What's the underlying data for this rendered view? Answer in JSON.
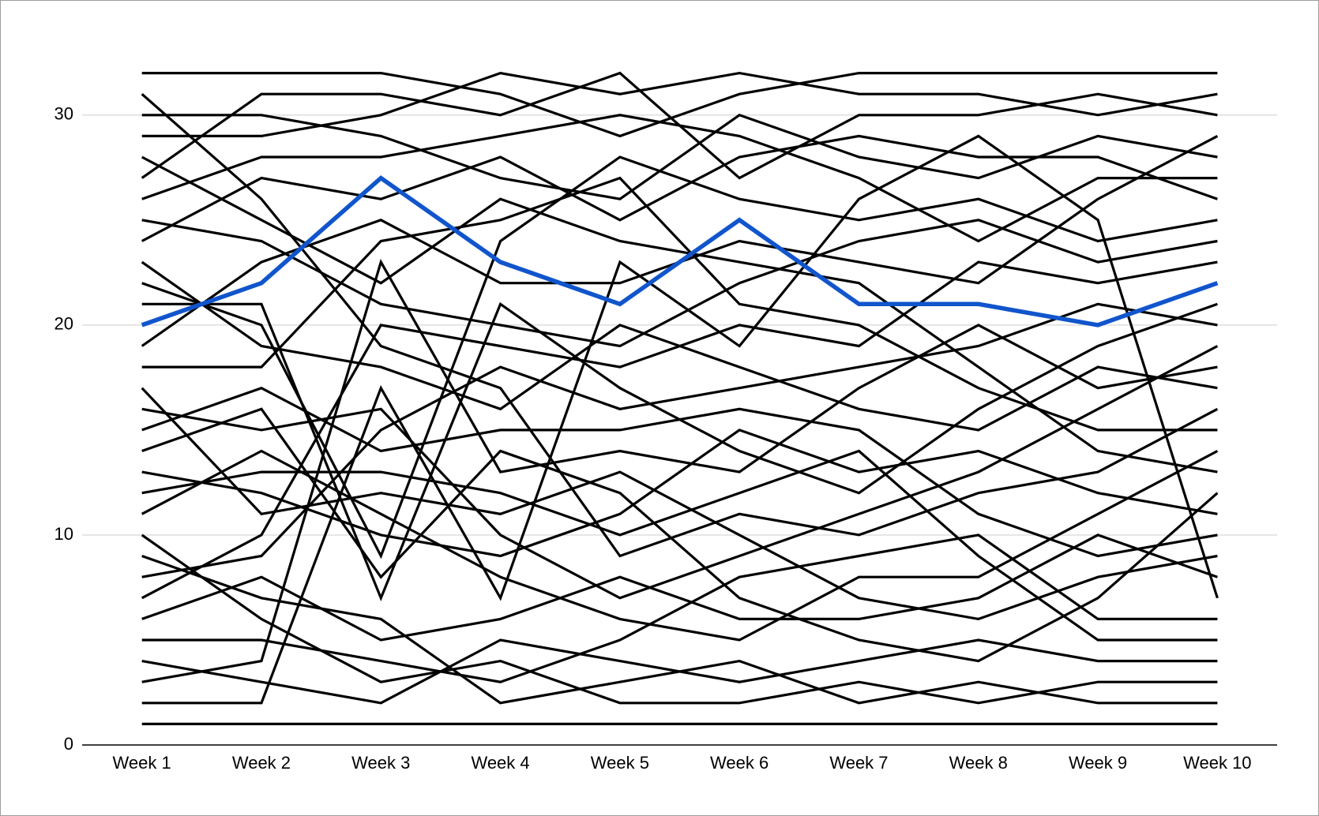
{
  "chart_data": {
    "type": "line",
    "categories": [
      "Week 1",
      "Week 2",
      "Week 3",
      "Week 4",
      "Week 5",
      "Week 6",
      "Week 7",
      "Week 8",
      "Week 9",
      "Week 10"
    ],
    "ylim": [
      0,
      33
    ],
    "yticks": [
      0,
      10,
      20,
      30
    ],
    "grid": true,
    "series": [
      {
        "color": "#000000",
        "values": [
          32,
          32,
          32,
          31,
          29,
          31,
          32,
          32,
          32,
          32
        ]
      },
      {
        "color": "#000000",
        "values": [
          31,
          26,
          19,
          17,
          9,
          11,
          10,
          12,
          13,
          16
        ]
      },
      {
        "color": "#000000",
        "values": [
          30,
          30,
          29,
          27,
          26,
          30,
          28,
          27,
          29,
          28
        ]
      },
      {
        "color": "#000000",
        "values": [
          29,
          29,
          30,
          32,
          31,
          32,
          31,
          31,
          30,
          31
        ]
      },
      {
        "color": "#000000",
        "values": [
          28,
          25,
          22,
          26,
          24,
          23,
          22,
          18,
          14,
          13
        ]
      },
      {
        "color": "#000000",
        "values": [
          27,
          31,
          31,
          30,
          32,
          27,
          30,
          30,
          31,
          30
        ]
      },
      {
        "color": "#000000",
        "values": [
          26,
          28,
          28,
          29,
          30,
          29,
          27,
          24,
          27,
          27
        ]
      },
      {
        "color": "#000000",
        "values": [
          25,
          24,
          21,
          20,
          19,
          22,
          24,
          25,
          23,
          24
        ]
      },
      {
        "color": "#000000",
        "values": [
          24,
          27,
          26,
          28,
          25,
          28,
          29,
          28,
          28,
          26
        ]
      },
      {
        "color": "#000000",
        "values": [
          23,
          19,
          18,
          16,
          20,
          18,
          16,
          15,
          18,
          17
        ]
      },
      {
        "color": "#000000",
        "values": [
          22,
          20,
          9,
          24,
          28,
          26,
          25,
          26,
          24,
          25
        ]
      },
      {
        "color": "#000000",
        "values": [
          21,
          21,
          7,
          21,
          17,
          14,
          12,
          16,
          19,
          21
        ]
      },
      {
        "color": "#000000",
        "values": [
          19,
          23,
          25,
          22,
          22,
          24,
          23,
          22,
          26,
          29
        ]
      },
      {
        "color": "#000000",
        "values": [
          18,
          18,
          24,
          25,
          27,
          21,
          20,
          17,
          15,
          15
        ]
      },
      {
        "color": "#000000",
        "values": [
          17,
          11,
          12,
          11,
          13,
          10,
          7,
          6,
          8,
          9
        ]
      },
      {
        "color": "#000000",
        "values": [
          16,
          15,
          16,
          10,
          7,
          9,
          11,
          13,
          16,
          19
        ]
      },
      {
        "color": "#000000",
        "values": [
          15,
          17,
          14,
          15,
          15,
          16,
          15,
          11,
          9,
          10
        ]
      },
      {
        "color": "#000000",
        "values": [
          14,
          16,
          8,
          14,
          12,
          7,
          5,
          4,
          7,
          12
        ]
      },
      {
        "color": "#000000",
        "values": [
          13,
          12,
          10,
          9,
          11,
          15,
          13,
          14,
          12,
          11
        ]
      },
      {
        "color": "#000000",
        "values": [
          12,
          13,
          13,
          12,
          10,
          12,
          14,
          9,
          5,
          5
        ]
      },
      {
        "color": "#000000",
        "values": [
          11,
          14,
          11,
          8,
          6,
          5,
          8,
          8,
          11,
          14
        ]
      },
      {
        "color": "#000000",
        "values": [
          10,
          6,
          3,
          4,
          2,
          2,
          3,
          2,
          3,
          3
        ]
      },
      {
        "color": "#000000",
        "values": [
          9,
          7,
          6,
          2,
          3,
          4,
          2,
          3,
          2,
          2
        ]
      },
      {
        "color": "#000000",
        "values": [
          8,
          9,
          15,
          18,
          16,
          17,
          18,
          19,
          21,
          20
        ]
      },
      {
        "color": "#000000",
        "values": [
          7,
          10,
          20,
          19,
          18,
          20,
          19,
          23,
          22,
          23
        ]
      },
      {
        "color": "#000000",
        "values": [
          6,
          8,
          5,
          6,
          8,
          6,
          6,
          7,
          10,
          8
        ]
      },
      {
        "color": "#000000",
        "values": [
          5,
          5,
          4,
          3,
          5,
          8,
          9,
          10,
          6,
          6
        ]
      },
      {
        "color": "#000000",
        "values": [
          4,
          3,
          2,
          5,
          4,
          3,
          4,
          5,
          4,
          4
        ]
      },
      {
        "color": "#000000",
        "values": [
          3,
          4,
          23,
          13,
          14,
          13,
          17,
          20,
          17,
          18
        ]
      },
      {
        "color": "#000000",
        "values": [
          2,
          2,
          17,
          7,
          23,
          19,
          26,
          29,
          25,
          7
        ]
      },
      {
        "color": "#000000",
        "values": [
          1,
          1,
          1,
          1,
          1,
          1,
          1,
          1,
          1,
          1
        ]
      },
      {
        "color": "#1155cc",
        "values": [
          20,
          22,
          27,
          23,
          21,
          25,
          21,
          21,
          20,
          22
        ]
      }
    ]
  }
}
